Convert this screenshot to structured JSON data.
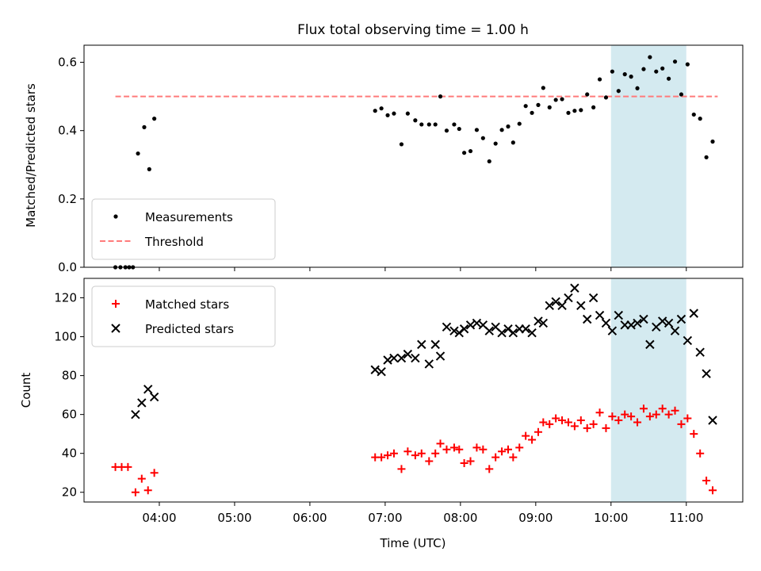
{
  "chart_data": [
    {
      "type": "scatter",
      "title": "Flux total observing time = 1.00 h",
      "ylabel": "Matched/Predicted stars",
      "xlabel": "",
      "ylim": [
        0,
        0.65
      ],
      "xlim": [
        "03:00",
        "11:45"
      ],
      "yticks": [
        0.0,
        0.2,
        0.4,
        0.6
      ],
      "ytick_labels": [
        "0.0",
        "0.2",
        "0.4",
        "0.6"
      ],
      "highlight": {
        "x_start": "10:00",
        "x_end": "11:00",
        "color": "#d4eaf0"
      },
      "threshold": {
        "value": 0.5,
        "x_start": "03:25",
        "x_end": "11:25",
        "color": "#ff7b7b"
      },
      "legend": {
        "placement": "lower-left",
        "entries": [
          "Measurements",
          "Threshold"
        ]
      },
      "series": [
        {
          "name": "Measurements",
          "marker": "dot",
          "color": "#000000",
          "points": [
            [
              "03:25",
              0.0
            ],
            [
              "03:29",
              0.0
            ],
            [
              "03:33",
              0.0
            ],
            [
              "03:36",
              0.0
            ],
            [
              "03:39",
              0.0
            ],
            [
              "03:43",
              0.333
            ],
            [
              "03:48",
              0.41
            ],
            [
              "03:52",
              0.287
            ],
            [
              "03:56",
              0.435
            ],
            [
              "06:52",
              0.458
            ],
            [
              "06:57",
              0.465
            ],
            [
              "07:02",
              0.445
            ],
            [
              "07:07",
              0.45
            ],
            [
              "07:13",
              0.36
            ],
            [
              "07:18",
              0.45
            ],
            [
              "07:24",
              0.43
            ],
            [
              "07:29",
              0.418
            ],
            [
              "07:35",
              0.418
            ],
            [
              "07:40",
              0.418
            ],
            [
              "07:44",
              0.5
            ],
            [
              "07:49",
              0.4
            ],
            [
              "07:55",
              0.418
            ],
            [
              "07:59",
              0.405
            ],
            [
              "08:03",
              0.335
            ],
            [
              "08:08",
              0.34
            ],
            [
              "08:13",
              0.402
            ],
            [
              "08:18",
              0.378
            ],
            [
              "08:23",
              0.31
            ],
            [
              "08:28",
              0.362
            ],
            [
              "08:33",
              0.402
            ],
            [
              "08:38",
              0.412
            ],
            [
              "08:42",
              0.365
            ],
            [
              "08:47",
              0.42
            ],
            [
              "08:52",
              0.472
            ],
            [
              "08:57",
              0.452
            ],
            [
              "09:02",
              0.475
            ],
            [
              "09:06",
              0.525
            ],
            [
              "09:11",
              0.468
            ],
            [
              "09:16",
              0.49
            ],
            [
              "09:21",
              0.492
            ],
            [
              "09:26",
              0.452
            ],
            [
              "09:31",
              0.458
            ],
            [
              "09:36",
              0.46
            ],
            [
              "09:41",
              0.506
            ],
            [
              "09:46",
              0.468
            ],
            [
              "09:51",
              0.55
            ],
            [
              "09:56",
              0.497
            ],
            [
              "10:01",
              0.573
            ],
            [
              "10:06",
              0.516
            ],
            [
              "10:11",
              0.565
            ],
            [
              "10:16",
              0.558
            ],
            [
              "10:21",
              0.524
            ],
            [
              "10:26",
              0.58
            ],
            [
              "10:31",
              0.615
            ],
            [
              "10:36",
              0.573
            ],
            [
              "10:41",
              0.582
            ],
            [
              "10:46",
              0.552
            ],
            [
              "10:51",
              0.602
            ],
            [
              "10:56",
              0.506
            ],
            [
              "11:01",
              0.594
            ],
            [
              "11:06",
              0.447
            ],
            [
              "11:11",
              0.435
            ],
            [
              "11:16",
              0.322
            ],
            [
              "11:21",
              0.368
            ]
          ]
        }
      ]
    },
    {
      "type": "scatter",
      "title": "",
      "ylabel": "Count",
      "xlabel": "Time (UTC)",
      "ylim": [
        15,
        130
      ],
      "xlim": [
        "03:00",
        "11:45"
      ],
      "yticks": [
        20,
        40,
        60,
        80,
        100,
        120
      ],
      "ytick_labels": [
        "20",
        "40",
        "60",
        "80",
        "100",
        "120"
      ],
      "xticks": [
        "04:00",
        "05:00",
        "06:00",
        "07:00",
        "08:00",
        "09:00",
        "10:00",
        "11:00"
      ],
      "highlight": {
        "x_start": "10:00",
        "x_end": "11:00",
        "color": "#d4eaf0"
      },
      "legend": {
        "placement": "upper-left",
        "entries": [
          "Matched stars",
          "Predicted stars"
        ]
      },
      "series": [
        {
          "name": "Matched stars",
          "marker": "plus",
          "color": "#ff0000",
          "points": [
            [
              "03:25",
              33
            ],
            [
              "03:30",
              33
            ],
            [
              "03:35",
              33
            ],
            [
              "03:41",
              20
            ],
            [
              "03:46",
              27
            ],
            [
              "03:51",
              21
            ],
            [
              "03:56",
              30
            ],
            [
              "06:52",
              38
            ],
            [
              "06:57",
              38
            ],
            [
              "07:02",
              39
            ],
            [
              "07:07",
              40
            ],
            [
              "07:13",
              32
            ],
            [
              "07:18",
              41
            ],
            [
              "07:24",
              39
            ],
            [
              "07:29",
              40
            ],
            [
              "07:35",
              36
            ],
            [
              "07:40",
              40
            ],
            [
              "07:44",
              45
            ],
            [
              "07:49",
              42
            ],
            [
              "07:55",
              43
            ],
            [
              "07:59",
              42
            ],
            [
              "08:03",
              35
            ],
            [
              "08:08",
              36
            ],
            [
              "08:13",
              43
            ],
            [
              "08:18",
              42
            ],
            [
              "08:23",
              32
            ],
            [
              "08:28",
              38
            ],
            [
              "08:33",
              41
            ],
            [
              "08:38",
              42
            ],
            [
              "08:42",
              38
            ],
            [
              "08:47",
              43
            ],
            [
              "08:52",
              49
            ],
            [
              "08:57",
              47
            ],
            [
              "09:02",
              51
            ],
            [
              "09:06",
              56
            ],
            [
              "09:11",
              55
            ],
            [
              "09:16",
              58
            ],
            [
              "09:21",
              57
            ],
            [
              "09:26",
              56
            ],
            [
              "09:31",
              54
            ],
            [
              "09:36",
              57
            ],
            [
              "09:41",
              53
            ],
            [
              "09:46",
              55
            ],
            [
              "09:51",
              61
            ],
            [
              "09:56",
              53
            ],
            [
              "10:01",
              59
            ],
            [
              "10:06",
              57
            ],
            [
              "10:11",
              60
            ],
            [
              "10:16",
              59
            ],
            [
              "10:21",
              56
            ],
            [
              "10:26",
              63
            ],
            [
              "10:31",
              59
            ],
            [
              "10:36",
              60
            ],
            [
              "10:41",
              63
            ],
            [
              "10:46",
              60
            ],
            [
              "10:51",
              62
            ],
            [
              "10:56",
              55
            ],
            [
              "11:01",
              58
            ],
            [
              "11:06",
              50
            ],
            [
              "11:11",
              40
            ],
            [
              "11:16",
              26
            ],
            [
              "11:21",
              21
            ]
          ]
        },
        {
          "name": "Predicted stars",
          "marker": "x",
          "color": "#000000",
          "points": [
            [
              "03:41",
              60
            ],
            [
              "03:46",
              66
            ],
            [
              "03:51",
              73
            ],
            [
              "03:56",
              69
            ],
            [
              "06:52",
              83
            ],
            [
              "06:57",
              82
            ],
            [
              "07:02",
              88
            ],
            [
              "07:07",
              89
            ],
            [
              "07:13",
              89
            ],
            [
              "07:18",
              91
            ],
            [
              "07:24",
              89
            ],
            [
              "07:29",
              96
            ],
            [
              "07:35",
              86
            ],
            [
              "07:40",
              96
            ],
            [
              "07:44",
              90
            ],
            [
              "07:49",
              105
            ],
            [
              "07:55",
              103
            ],
            [
              "07:59",
              102
            ],
            [
              "08:03",
              104
            ],
            [
              "08:08",
              106
            ],
            [
              "08:13",
              107
            ],
            [
              "08:18",
              106
            ],
            [
              "08:23",
              103
            ],
            [
              "08:28",
              105
            ],
            [
              "08:33",
              102
            ],
            [
              "08:38",
              104
            ],
            [
              "08:42",
              102
            ],
            [
              "08:47",
              104
            ],
            [
              "08:52",
              104
            ],
            [
              "08:57",
              102
            ],
            [
              "09:02",
              108
            ],
            [
              "09:06",
              107
            ],
            [
              "09:11",
              116
            ],
            [
              "09:16",
              118
            ],
            [
              "09:21",
              116
            ],
            [
              "09:26",
              120
            ],
            [
              "09:31",
              125
            ],
            [
              "09:36",
              116
            ],
            [
              "09:41",
              109
            ],
            [
              "09:46",
              120
            ],
            [
              "09:51",
              111
            ],
            [
              "09:56",
              107
            ],
            [
              "10:01",
              103
            ],
            [
              "10:06",
              111
            ],
            [
              "10:11",
              106
            ],
            [
              "10:16",
              106
            ],
            [
              "10:21",
              107
            ],
            [
              "10:26",
              109
            ],
            [
              "10:31",
              96
            ],
            [
              "10:36",
              105
            ],
            [
              "10:41",
              108
            ],
            [
              "10:46",
              107
            ],
            [
              "10:51",
              103
            ],
            [
              "10:56",
              109
            ],
            [
              "11:01",
              98
            ],
            [
              "11:06",
              112
            ],
            [
              "11:11",
              92
            ],
            [
              "11:16",
              81
            ],
            [
              "11:21",
              57
            ]
          ]
        }
      ]
    }
  ]
}
